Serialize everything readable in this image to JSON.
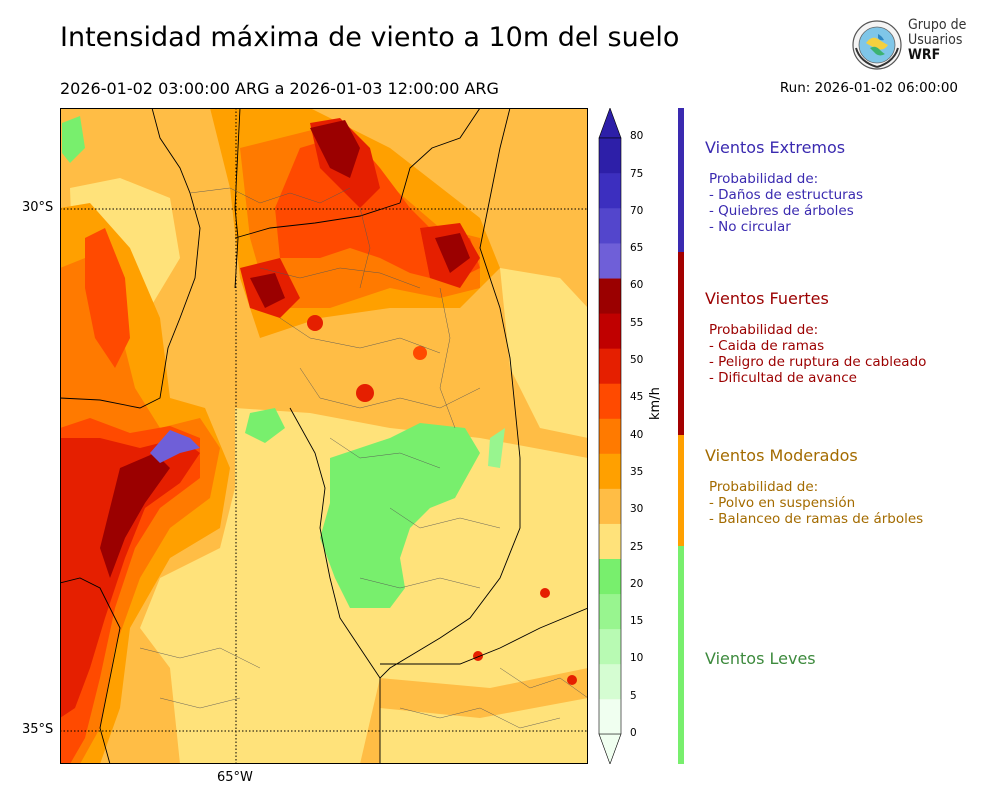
{
  "header": {
    "title": "Intensidad máxima de viento a 10m del suelo",
    "subtitle": "2026-01-02 03:00:00 ARG  a  2026-01-03 12:00:00 ARG",
    "run": "Run: 2026-01-02 06:00:00"
  },
  "logo": {
    "line1": "Grupo de",
    "line2": "Usuarios",
    "line3": "WRF"
  },
  "map": {
    "lat_labels": [
      "30°S",
      "35°S"
    ],
    "lon_labels": [
      "65°W"
    ]
  },
  "colorbar": {
    "unit": "km/h",
    "ticks": [
      "0",
      "5",
      "10",
      "15",
      "20",
      "25",
      "30",
      "35",
      "40",
      "45",
      "50",
      "55",
      "60",
      "65",
      "70",
      "75",
      "80"
    ],
    "colors": [
      "#f0fff0",
      "#d5fdd2",
      "#b8fab3",
      "#98f58f",
      "#78ef6d",
      "#ffe27a",
      "#ffbd45",
      "#ffa000",
      "#ff7a00",
      "#ff4a00",
      "#e51f00",
      "#c00000",
      "#9b0000",
      "#6f5fd8",
      "#5346cc",
      "#3c2fbf",
      "#2d1fa8"
    ]
  },
  "categories": [
    {
      "name": "Vientos Extremos",
      "color": "#3a2ab0",
      "lines": [
        "Probabilidad de:",
        "- Daños de estructuras",
        "- Quiebres de árboles",
        "- No circular"
      ]
    },
    {
      "name": "Vientos Fuertes",
      "color": "#9b0000",
      "lines": [
        "Probabilidad de:",
        "- Caida de ramas",
        "- Peligro de ruptura de cableado",
        "- Dificultad de avance"
      ]
    },
    {
      "name": "Vientos Moderados",
      "color": "#a36b00",
      "lines": [
        "Probabilidad de:",
        "- Polvo en suspensión",
        "- Balanceo de ramas de árboles"
      ]
    },
    {
      "name": "Vientos Leves",
      "color": "#3d8a3d",
      "lines": []
    }
  ],
  "category_bar_colors": [
    "#3a2ab0",
    "#a30000",
    "#ffa000",
    "#78ef6d"
  ]
}
